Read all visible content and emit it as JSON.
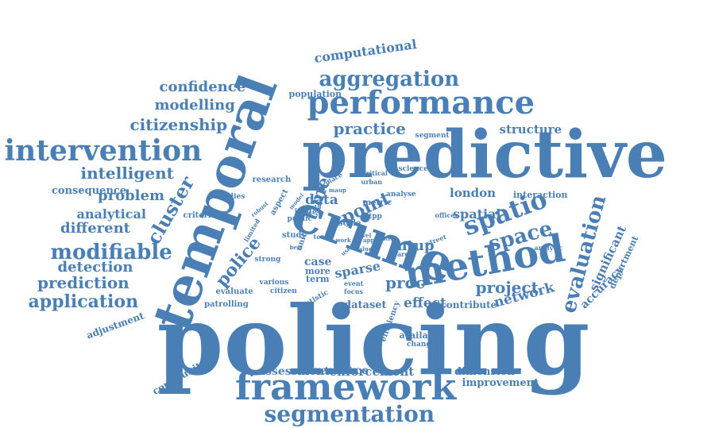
{
  "color": "#4a7fb5",
  "words": [
    {
      "text": "policing",
      "rot": 0
    },
    {
      "text": "predictive",
      "rot": 0
    },
    {
      "text": "temporal",
      "rot": -70
    },
    {
      "text": "crime",
      "rot": 20
    },
    {
      "text": "method",
      "rot": -10
    },
    {
      "text": "framework",
      "rot": 0
    },
    {
      "text": "performance",
      "rot": 0
    },
    {
      "text": "intervention",
      "rot": 0
    },
    {
      "text": "segmentation",
      "rot": 0
    },
    {
      "text": "spatio",
      "rot": -20
    },
    {
      "text": "evaluation",
      "rot": -75
    },
    {
      "text": "space",
      "rot": -15
    },
    {
      "text": "modifiable",
      "rot": 0
    },
    {
      "text": "aggregation",
      "rot": 0
    },
    {
      "text": "cluster",
      "rot": -60
    },
    {
      "text": "application",
      "rot": 0
    },
    {
      "text": "point",
      "rot": -25
    },
    {
      "text": "police",
      "rot": -50
    },
    {
      "text": "practice",
      "rot": 0
    },
    {
      "text": "intelligent",
      "rot": 0
    },
    {
      "text": "project",
      "rot": 0
    },
    {
      "text": "citizenship",
      "rot": 0
    },
    {
      "text": "prediction",
      "rot": 0
    },
    {
      "text": "modelling",
      "rot": 0
    },
    {
      "text": "problem",
      "rot": 0
    },
    {
      "text": "confidence",
      "rot": 0
    },
    {
      "text": "detection",
      "rot": 0
    },
    {
      "text": "different",
      "rot": 0
    },
    {
      "text": "analytical",
      "rot": 0
    },
    {
      "text": "computational",
      "rot": -8
    },
    {
      "text": "proc",
      "rot": 0
    },
    {
      "text": "sparse",
      "rot": -10
    },
    {
      "text": "time",
      "rot": -70
    },
    {
      "text": "data",
      "rot": 0
    },
    {
      "text": "effect",
      "rot": 0
    },
    {
      "text": "network",
      "rot": -15
    },
    {
      "text": "structure",
      "rot": 0
    },
    {
      "text": "mtup",
      "rot": 0
    },
    {
      "text": "london",
      "rot": 0
    },
    {
      "text": "spatial",
      "rot": 0
    },
    {
      "text": "significant",
      "rot": -65
    },
    {
      "text": "accuracy",
      "rot": -45
    },
    {
      "text": "department",
      "rot": -65
    },
    {
      "text": "enforcement",
      "rot": 0
    },
    {
      "text": "assessment",
      "rot": 0
    },
    {
      "text": "resource",
      "rot": 0
    },
    {
      "text": "improvement",
      "rot": 0
    },
    {
      "text": "dimension",
      "rot": 0
    },
    {
      "text": "consequence",
      "rot": 0
    },
    {
      "text": "dataset",
      "rot": 0
    },
    {
      "text": "contribute",
      "rot": 0
    },
    {
      "text": "adjustment",
      "rot": -20
    },
    {
      "text": "community",
      "rot": -30
    },
    {
      "text": "case",
      "rot": 0
    },
    {
      "text": "more",
      "rot": 0
    },
    {
      "text": "term",
      "rot": 0
    },
    {
      "text": "interaction",
      "rot": 0
    },
    {
      "text": "population",
      "rot": 0
    },
    {
      "text": "available",
      "rot": 0
    },
    {
      "text": "change",
      "rot": 0
    },
    {
      "text": "efficiency",
      "rot": -70
    },
    {
      "text": "patrolling",
      "rot": 0
    },
    {
      "text": "evaluate",
      "rot": 0
    },
    {
      "text": "criterion",
      "rot": 0
    },
    {
      "text": "studies",
      "rot": 0
    },
    {
      "text": "research",
      "rot": 0
    },
    {
      "text": "aspect",
      "rot": -60
    },
    {
      "text": "issue",
      "rot": 0
    },
    {
      "text": "study",
      "rot": 0
    },
    {
      "text": "unit",
      "rot": -70
    },
    {
      "text": "public",
      "rot": 0
    },
    {
      "text": "strong",
      "rot": 0
    },
    {
      "text": "various",
      "rot": 0
    },
    {
      "text": "citizen",
      "rot": 0
    },
    {
      "text": "statistic",
      "rot": -30
    },
    {
      "text": "event",
      "rot": 0
    },
    {
      "text": "focus",
      "rot": 0
    },
    {
      "text": "area",
      "rot": 0
    },
    {
      "text": "tool",
      "rot": 0
    },
    {
      "text": "scale",
      "rot": 0
    },
    {
      "text": "metric",
      "rot": 0
    },
    {
      "text": "stpp",
      "rot": 0
    },
    {
      "text": "analyse",
      "rot": 0
    },
    {
      "text": "science",
      "rot": 0
    },
    {
      "text": "segment",
      "rot": 0
    },
    {
      "text": "critical",
      "rot": 0
    },
    {
      "text": "urban",
      "rot": 0
    },
    {
      "text": "place",
      "rot": -30
    },
    {
      "text": "officer",
      "rot": 0
    },
    {
      "text": "analytic",
      "rot": 0
    },
    {
      "text": "street",
      "rot": -20
    },
    {
      "text": "limited",
      "rot": -60
    },
    {
      "text": "robust",
      "rot": -40
    },
    {
      "text": "model",
      "rot": -50
    },
    {
      "text": "sath",
      "rot": 0
    },
    {
      "text": "maup",
      "rot": 0
    },
    {
      "text": "level",
      "rot": 0
    },
    {
      "text": "best",
      "rot": 0
    },
    {
      "text": "work",
      "rot": 0
    },
    {
      "text": "used",
      "rot": -40
    },
    {
      "text": "app",
      "rot": 0
    },
    {
      "text": "value",
      "rot": 0
    },
    {
      "text": "step",
      "rot": 0
    }
  ]
}
